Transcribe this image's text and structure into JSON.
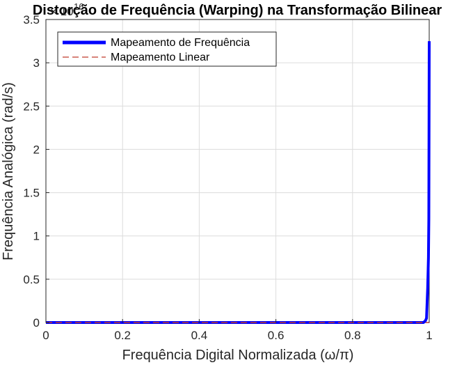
{
  "chart_data": {
    "type": "line",
    "title": "Distorção de Frequência (Warping) na Transformação Bilinear",
    "xlabel": "Frequência Digital Normalizada (ω/π)",
    "ylabel": "Frequência Analógica (rad/s)",
    "y_exponent_label": "× 10",
    "y_exponent_power": "16",
    "xlim": [
      0,
      1
    ],
    "ylim": [
      0,
      3.5
    ],
    "y_scale_factor": 1e+16,
    "grid": true,
    "legend_position": "top-left",
    "x_ticks": [
      "0",
      "0.2",
      "0.4",
      "0.6",
      "0.8",
      "1"
    ],
    "x_tick_values": [
      0,
      0.2,
      0.4,
      0.6,
      0.8,
      1
    ],
    "y_ticks": [
      "0",
      "0.5",
      "1",
      "1.5",
      "2",
      "2.5",
      "3",
      "3.5"
    ],
    "y_tick_values": [
      0,
      0.5,
      1,
      1.5,
      2,
      2.5,
      3,
      3.5
    ],
    "series": [
      {
        "name": "Mapeamento de Frequência",
        "color": "#0000ff",
        "style": "solid",
        "x": [
          0,
          0.2,
          0.4,
          0.6,
          0.8,
          0.95,
          0.985,
          0.99,
          0.993,
          0.996,
          0.998,
          0.999,
          1.0
        ],
        "y": [
          0,
          0,
          0,
          0,
          0,
          0,
          0,
          0.02,
          0.05,
          0.4,
          0.75,
          1.2,
          3.25
        ]
      },
      {
        "name": "Mapeamento Linear",
        "color": "#c0392b",
        "style": "dashed",
        "x": [
          0,
          1
        ],
        "y": [
          0,
          0
        ]
      }
    ]
  }
}
